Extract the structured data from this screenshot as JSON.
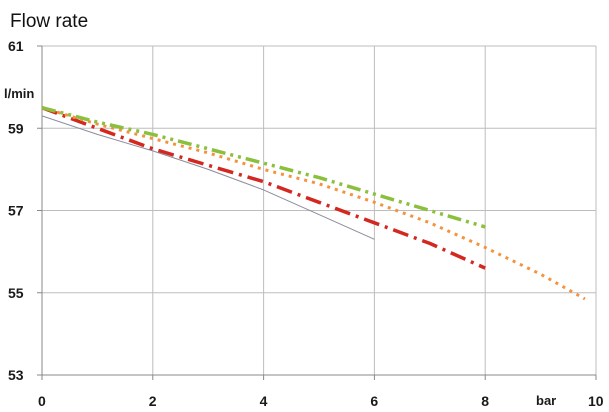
{
  "chart_data": {
    "type": "line",
    "title": "Flow rate",
    "xlabel": "bar",
    "ylabel": "l/min",
    "xlim": [
      0,
      10
    ],
    "ylim": [
      53,
      61
    ],
    "x_ticks": [
      "0",
      "2",
      "4",
      "6",
      "8",
      "10"
    ],
    "y_ticks": [
      "53",
      "55",
      "57",
      "59",
      "61"
    ],
    "grid": true,
    "legend": "none",
    "series": [
      {
        "color": "#8a8d9c",
        "style": "solid",
        "x": [
          0,
          1,
          2,
          3,
          4,
          5,
          6
        ],
        "y": [
          59.3,
          58.85,
          58.45,
          58.0,
          57.5,
          56.9,
          56.3
        ]
      },
      {
        "color": "#d3271f",
        "style": "dash-dot",
        "x": [
          0,
          1,
          2,
          3,
          4,
          5,
          6,
          7,
          8
        ],
        "y": [
          59.5,
          59.0,
          58.5,
          58.1,
          57.7,
          57.2,
          56.7,
          56.2,
          55.6
        ]
      },
      {
        "color": "#f5923e",
        "style": "dotted",
        "x": [
          0,
          1,
          2,
          3,
          4,
          5,
          6,
          7,
          8,
          9,
          9.8
        ],
        "y": [
          59.5,
          59.1,
          58.75,
          58.4,
          58.0,
          57.65,
          57.2,
          56.7,
          56.1,
          55.45,
          54.85
        ]
      },
      {
        "color": "#8bbf3c",
        "style": "dash-dot-dot",
        "x": [
          0,
          1,
          2,
          3,
          4,
          5,
          6,
          7,
          8
        ],
        "y": [
          59.5,
          59.15,
          58.85,
          58.5,
          58.15,
          57.8,
          57.4,
          57.0,
          56.6
        ]
      }
    ]
  }
}
